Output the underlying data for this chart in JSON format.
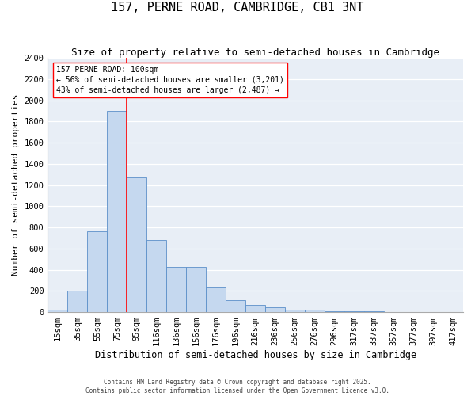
{
  "title": "157, PERNE ROAD, CAMBRIDGE, CB1 3NT",
  "subtitle": "Size of property relative to semi-detached houses in Cambridge",
  "xlabel": "Distribution of semi-detached houses by size in Cambridge",
  "ylabel": "Number of semi-detached properties",
  "bin_labels": [
    "15sqm",
    "35sqm",
    "55sqm",
    "75sqm",
    "95sqm",
    "116sqm",
    "136sqm",
    "156sqm",
    "176sqm",
    "196sqm",
    "216sqm",
    "236sqm",
    "256sqm",
    "276sqm",
    "296sqm",
    "317sqm",
    "337sqm",
    "357sqm",
    "377sqm",
    "397sqm",
    "417sqm"
  ],
  "bar_values": [
    20,
    200,
    760,
    1900,
    1270,
    680,
    430,
    430,
    230,
    110,
    65,
    45,
    25,
    20,
    10,
    10,
    10,
    0,
    0,
    0,
    0
  ],
  "bar_color": "#c5d8ef",
  "bar_edge_color": "#5b8fc9",
  "vline_x": 3.5,
  "vline_color": "red",
  "annotation_text": "157 PERNE ROAD: 100sqm\n← 56% of semi-detached houses are smaller (3,201)\n43% of semi-detached houses are larger (2,487) →",
  "ylim": [
    0,
    2400
  ],
  "yticks": [
    0,
    200,
    400,
    600,
    800,
    1000,
    1200,
    1400,
    1600,
    1800,
    2000,
    2200,
    2400
  ],
  "background_color": "#e8eef6",
  "grid_color": "#d0d8e8",
  "footer_line1": "Contains HM Land Registry data © Crown copyright and database right 2025.",
  "footer_line2": "Contains public sector information licensed under the Open Government Licence v3.0.",
  "title_fontsize": 11,
  "subtitle_fontsize": 9,
  "xlabel_fontsize": 8.5,
  "ylabel_fontsize": 8,
  "tick_fontsize": 7.5,
  "annotation_fontsize": 7,
  "footer_fontsize": 5.5
}
